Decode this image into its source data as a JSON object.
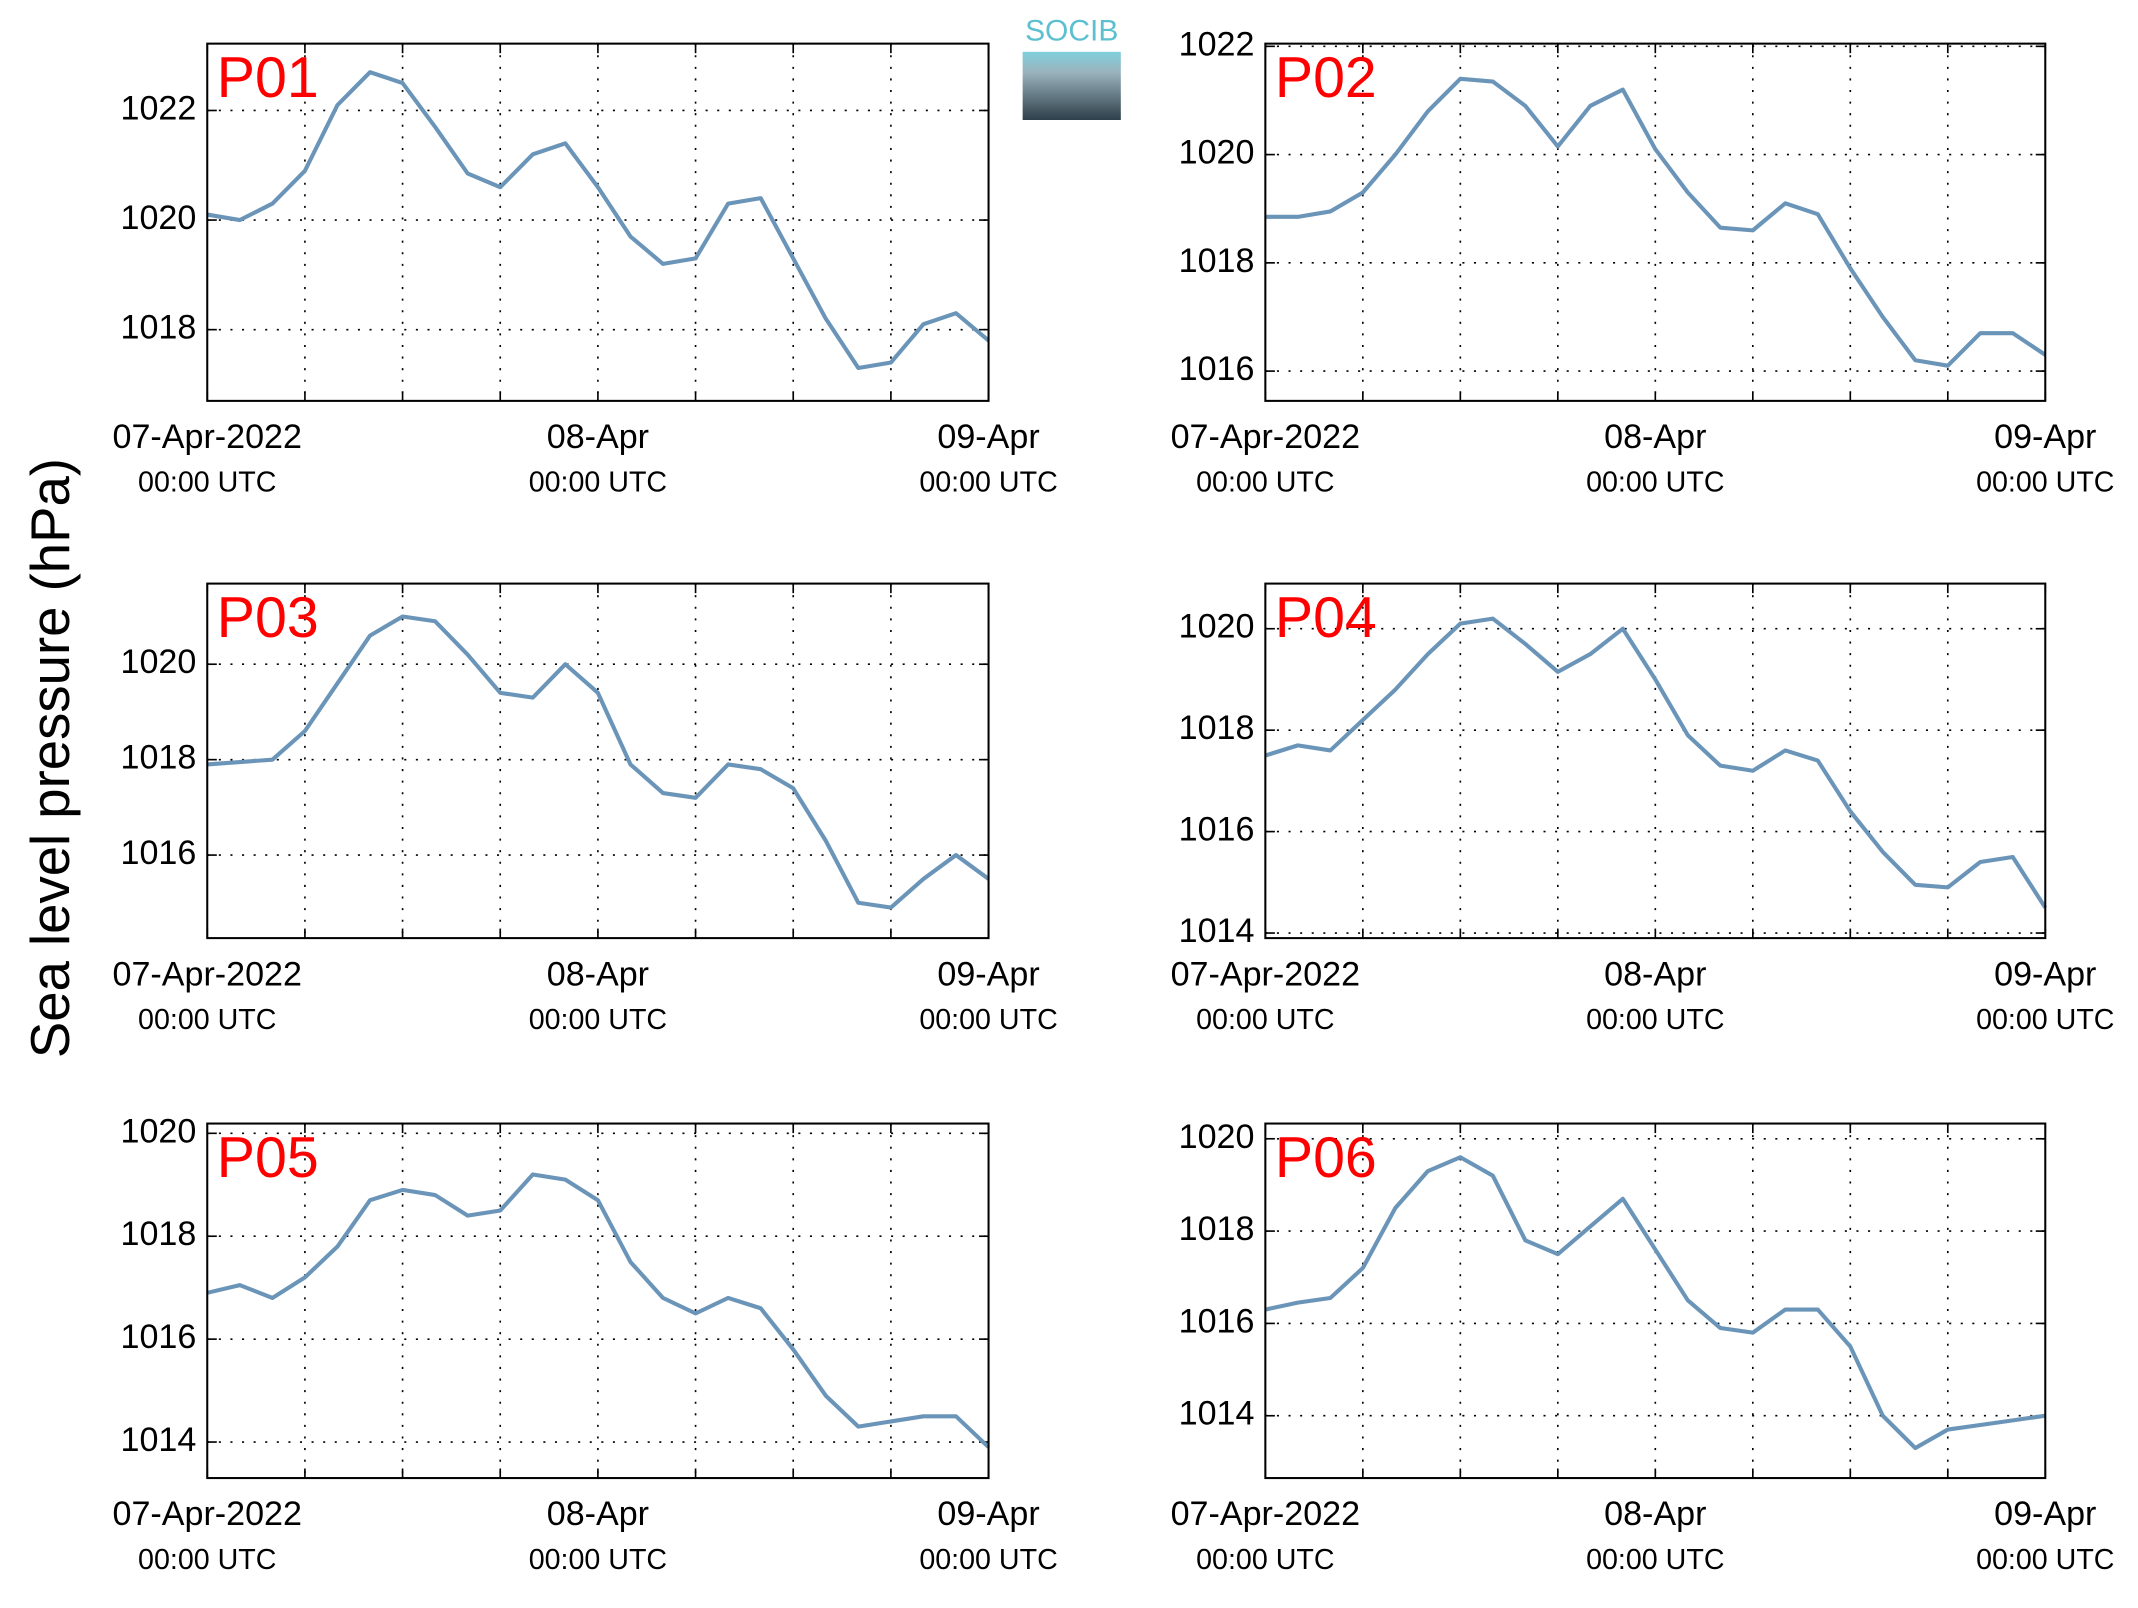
{
  "ylabel": "Sea level pressure (hPa)",
  "logo": "SOCIB",
  "chart_data": [
    {
      "type": "line",
      "title": "P01",
      "color": "#6b95b8",
      "grid": true,
      "x": [
        0,
        2,
        4,
        6,
        8,
        10,
        12,
        14,
        16,
        18,
        20,
        22,
        24,
        26,
        28,
        30,
        32,
        34,
        36,
        38,
        40,
        42,
        44,
        46,
        48
      ],
      "values": [
        1020.1,
        1020.0,
        1020.3,
        1020.9,
        1022.1,
        1022.7,
        1022.5,
        1021.7,
        1020.85,
        1020.6,
        1021.2,
        1021.4,
        1020.6,
        1019.7,
        1019.2,
        1019.3,
        1020.3,
        1020.4,
        1019.3,
        1018.2,
        1017.3,
        1017.4,
        1018.1,
        1018.3,
        1017.8
      ],
      "xlim": [
        0,
        48
      ],
      "xticks": [
        {
          "value": 0,
          "label": "07-Apr-2022",
          "sublabel": "00:00 UTC"
        },
        {
          "value": 6,
          "label": null
        },
        {
          "value": 12,
          "label": null
        },
        {
          "value": 18,
          "label": null
        },
        {
          "value": 24,
          "label": "08-Apr",
          "sublabel": "00:00 UTC"
        },
        {
          "value": 30,
          "label": null
        },
        {
          "value": 36,
          "label": null
        },
        {
          "value": 42,
          "label": null
        },
        {
          "value": 48,
          "label": "09-Apr",
          "sublabel": "00:00 UTC"
        }
      ],
      "ylim": [
        1016.7,
        1023.22
      ],
      "yticks": [
        1018,
        1020,
        1022
      ]
    },
    {
      "type": "line",
      "title": "P02",
      "color": "#6b95b8",
      "grid": true,
      "x": [
        0,
        2,
        4,
        6,
        8,
        10,
        12,
        14,
        16,
        18,
        20,
        22,
        24,
        26,
        28,
        30,
        32,
        34,
        36,
        38,
        40,
        42,
        44,
        46,
        48
      ],
      "values": [
        1018.85,
        1018.85,
        1018.95,
        1019.3,
        1020.0,
        1020.8,
        1021.4,
        1021.35,
        1020.9,
        1020.15,
        1020.9,
        1021.2,
        1020.1,
        1019.3,
        1018.65,
        1018.6,
        1019.1,
        1018.9,
        1017.9,
        1017.0,
        1016.2,
        1016.1,
        1016.7,
        1016.7,
        1016.3
      ],
      "xlim": [
        0,
        48
      ],
      "xticks": [
        {
          "value": 0,
          "label": "07-Apr-2022",
          "sublabel": "00:00 UTC"
        },
        {
          "value": 6,
          "label": null
        },
        {
          "value": 12,
          "label": null
        },
        {
          "value": 18,
          "label": null
        },
        {
          "value": 24,
          "label": "08-Apr",
          "sublabel": "00:00 UTC"
        },
        {
          "value": 30,
          "label": null
        },
        {
          "value": 36,
          "label": null
        },
        {
          "value": 42,
          "label": null
        },
        {
          "value": 48,
          "label": "09-Apr",
          "sublabel": "00:00 UTC"
        }
      ],
      "ylim": [
        1015.45,
        1022.05
      ],
      "yticks": [
        1016,
        1018,
        1020,
        1022
      ]
    },
    {
      "type": "line",
      "title": "P03",
      "color": "#6b95b8",
      "grid": true,
      "x": [
        0,
        2,
        4,
        6,
        8,
        10,
        12,
        14,
        16,
        18,
        20,
        22,
        24,
        26,
        28,
        30,
        32,
        34,
        36,
        38,
        40,
        42,
        44,
        46,
        48
      ],
      "values": [
        1017.9,
        1017.95,
        1018.0,
        1018.6,
        1019.6,
        1020.6,
        1021.0,
        1020.9,
        1020.2,
        1019.4,
        1019.3,
        1020.0,
        1019.4,
        1017.9,
        1017.3,
        1017.2,
        1017.9,
        1017.8,
        1017.4,
        1016.3,
        1015.0,
        1014.9,
        1015.5,
        1016.0,
        1015.5
      ],
      "xlim": [
        0,
        48
      ],
      "xticks": [
        {
          "value": 0,
          "label": "07-Apr-2022",
          "sublabel": "00:00 UTC"
        },
        {
          "value": 6,
          "label": null
        },
        {
          "value": 12,
          "label": null
        },
        {
          "value": 18,
          "label": null
        },
        {
          "value": 24,
          "label": "08-Apr",
          "sublabel": "00:00 UTC"
        },
        {
          "value": 30,
          "label": null
        },
        {
          "value": 36,
          "label": null
        },
        {
          "value": 42,
          "label": null
        },
        {
          "value": 48,
          "label": "09-Apr",
          "sublabel": "00:00 UTC"
        }
      ],
      "ylim": [
        1014.26,
        1021.69
      ],
      "yticks": [
        1016,
        1018,
        1020
      ]
    },
    {
      "type": "line",
      "title": "P04",
      "color": "#6b95b8",
      "grid": true,
      "x": [
        0,
        2,
        4,
        6,
        8,
        10,
        12,
        14,
        16,
        18,
        20,
        22,
        24,
        26,
        28,
        30,
        32,
        34,
        36,
        38,
        40,
        42,
        44,
        46,
        48
      ],
      "values": [
        1017.5,
        1017.7,
        1017.6,
        1018.2,
        1018.8,
        1019.5,
        1020.1,
        1020.2,
        1019.7,
        1019.15,
        1019.5,
        1020.0,
        1019.0,
        1017.9,
        1017.3,
        1017.2,
        1017.6,
        1017.4,
        1016.4,
        1015.6,
        1014.95,
        1014.9,
        1015.4,
        1015.5,
        1014.5
      ],
      "xlim": [
        0,
        48
      ],
      "xticks": [
        {
          "value": 0,
          "label": "07-Apr-2022",
          "sublabel": "00:00 UTC"
        },
        {
          "value": 6,
          "label": null
        },
        {
          "value": 12,
          "label": null
        },
        {
          "value": 18,
          "label": null
        },
        {
          "value": 24,
          "label": "08-Apr",
          "sublabel": "00:00 UTC"
        },
        {
          "value": 30,
          "label": null
        },
        {
          "value": 36,
          "label": null
        },
        {
          "value": 42,
          "label": null
        },
        {
          "value": 48,
          "label": "09-Apr",
          "sublabel": "00:00 UTC"
        }
      ],
      "ylim": [
        1013.9,
        1020.89
      ],
      "yticks": [
        1014,
        1016,
        1018,
        1020
      ]
    },
    {
      "type": "line",
      "title": "P05",
      "color": "#6b95b8",
      "grid": true,
      "x": [
        0,
        2,
        4,
        6,
        8,
        10,
        12,
        14,
        16,
        18,
        20,
        22,
        24,
        26,
        28,
        30,
        32,
        34,
        36,
        38,
        40,
        42,
        44,
        46,
        48
      ],
      "values": [
        1016.9,
        1017.05,
        1016.8,
        1017.2,
        1017.8,
        1018.7,
        1018.9,
        1018.8,
        1018.4,
        1018.5,
        1019.2,
        1019.1,
        1018.7,
        1017.5,
        1016.8,
        1016.5,
        1016.8,
        1016.6,
        1015.8,
        1014.9,
        1014.3,
        1014.4,
        1014.5,
        1014.5,
        1013.9
      ],
      "xlim": [
        0,
        48
      ],
      "xticks": [
        {
          "value": 0,
          "label": "07-Apr-2022",
          "sublabel": "00:00 UTC"
        },
        {
          "value": 6,
          "label": null
        },
        {
          "value": 12,
          "label": null
        },
        {
          "value": 18,
          "label": null
        },
        {
          "value": 24,
          "label": "08-Apr",
          "sublabel": "00:00 UTC"
        },
        {
          "value": 30,
          "label": null
        },
        {
          "value": 36,
          "label": null
        },
        {
          "value": 42,
          "label": null
        },
        {
          "value": 48,
          "label": "09-Apr",
          "sublabel": "00:00 UTC"
        }
      ],
      "ylim": [
        1013.3,
        1020.19
      ],
      "yticks": [
        1014,
        1016,
        1018,
        1020
      ]
    },
    {
      "type": "line",
      "title": "P06",
      "color": "#6b95b8",
      "grid": true,
      "x": [
        0,
        2,
        4,
        6,
        8,
        10,
        12,
        14,
        16,
        18,
        20,
        22,
        24,
        26,
        28,
        30,
        32,
        34,
        36,
        38,
        40,
        42,
        44,
        46,
        48
      ],
      "values": [
        1016.3,
        1016.45,
        1016.55,
        1017.2,
        1018.5,
        1019.3,
        1019.6,
        1019.2,
        1017.8,
        1017.5,
        1018.1,
        1018.7,
        1017.6,
        1016.5,
        1015.9,
        1015.8,
        1016.3,
        1016.3,
        1015.5,
        1014.0,
        1013.3,
        1013.7,
        1013.8,
        1013.9,
        1014.0
      ],
      "xlim": [
        0,
        48
      ],
      "xticks": [
        {
          "value": 0,
          "label": "07-Apr-2022",
          "sublabel": "00:00 UTC"
        },
        {
          "value": 6,
          "label": null
        },
        {
          "value": 12,
          "label": null
        },
        {
          "value": 18,
          "label": null
        },
        {
          "value": 24,
          "label": "08-Apr",
          "sublabel": "00:00 UTC"
        },
        {
          "value": 30,
          "label": null
        },
        {
          "value": 36,
          "label": null
        },
        {
          "value": 42,
          "label": null
        },
        {
          "value": 48,
          "label": "09-Apr",
          "sublabel": "00:00 UTC"
        }
      ],
      "ylim": [
        1012.65,
        1020.33
      ],
      "yticks": [
        1014,
        1016,
        1018,
        1020
      ]
    }
  ]
}
